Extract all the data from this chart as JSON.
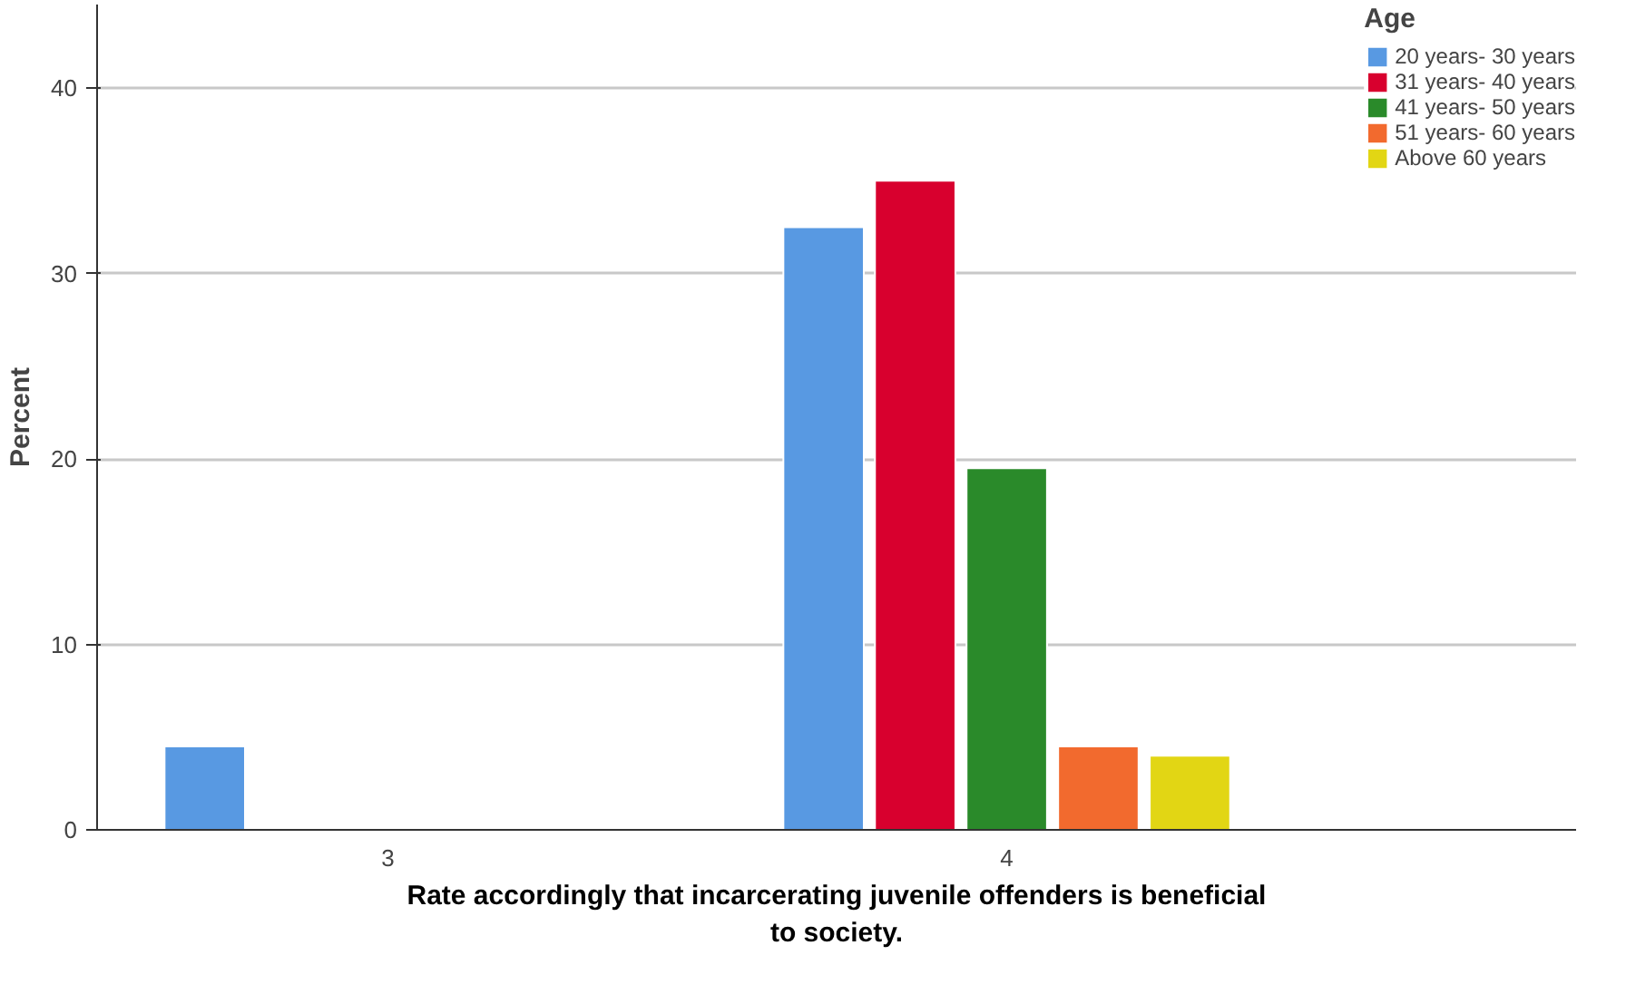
{
  "chart_data": {
    "type": "bar",
    "categories": [
      "3",
      "4"
    ],
    "xlabel": "Rate accordingly that incarcerating juvenile offenders is beneficial to society.",
    "ylabel": "Percent",
    "legend_title": "Age",
    "legend": "right",
    "grid": "y",
    "ylim": [
      0,
      44.5
    ],
    "yticks": [
      0,
      10,
      20,
      30,
      40
    ],
    "series": [
      {
        "name": "20 years- 30 years",
        "color": "#5899e2",
        "values": [
          4.5,
          32.5
        ]
      },
      {
        "name": "31 years- 40 years",
        "color": "#d8002e",
        "values": [
          null,
          35.0
        ]
      },
      {
        "name": "41 years- 50 years",
        "color": "#2a8a2a",
        "values": [
          null,
          19.5
        ]
      },
      {
        "name": "51 years- 60 years",
        "color": "#f26a2e",
        "values": [
          null,
          4.5
        ]
      },
      {
        "name": "Above 60 years",
        "color": "#e2d614",
        "values": [
          null,
          4.0
        ]
      }
    ]
  }
}
